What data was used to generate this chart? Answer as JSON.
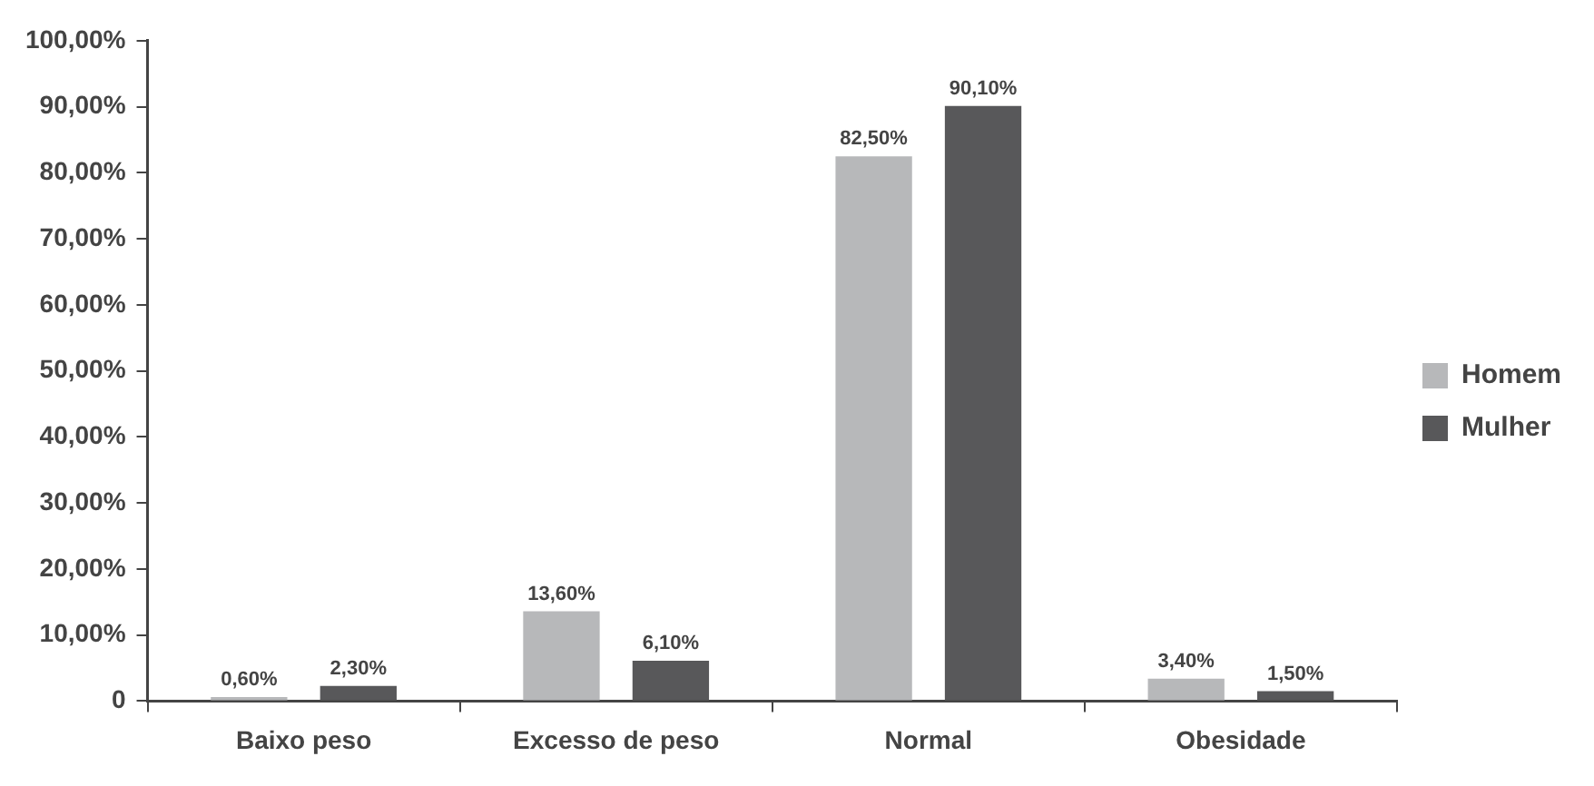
{
  "chart_data": {
    "type": "bar",
    "categories": [
      "Baixo peso",
      "Excesso de peso",
      "Normal",
      "Obesidade"
    ],
    "series": [
      {
        "name": "Homem",
        "color": "#b7b8ba",
        "values": [
          0.6,
          13.6,
          82.5,
          3.4
        ],
        "value_labels": [
          "0,60%",
          "13,60%",
          "82,50%",
          "3,40%"
        ]
      },
      {
        "name": "Mulher",
        "color": "#58585a",
        "values": [
          2.3,
          6.1,
          90.1,
          1.5
        ],
        "value_labels": [
          "2,30%",
          "6,10%",
          "90,10%",
          "1,50%"
        ]
      }
    ],
    "ylim": [
      0,
      100
    ],
    "yticks": [
      0,
      {
        "value": 10,
        "label": "10,00%"
      },
      {
        "value": 20,
        "label": "20,00%"
      },
      {
        "value": 30,
        "label": "30,00%"
      },
      {
        "value": 40,
        "label": "40,00%"
      },
      {
        "value": 50,
        "label": "50,00%"
      },
      {
        "value": 60,
        "label": "60,00%"
      },
      {
        "value": 70,
        "label": "70,00%"
      },
      {
        "value": 80,
        "label": "80,00%"
      },
      {
        "value": 90,
        "label": "90,00%"
      },
      {
        "value": 100,
        "label": "100,00%"
      }
    ],
    "grid": false,
    "legend": "right"
  }
}
